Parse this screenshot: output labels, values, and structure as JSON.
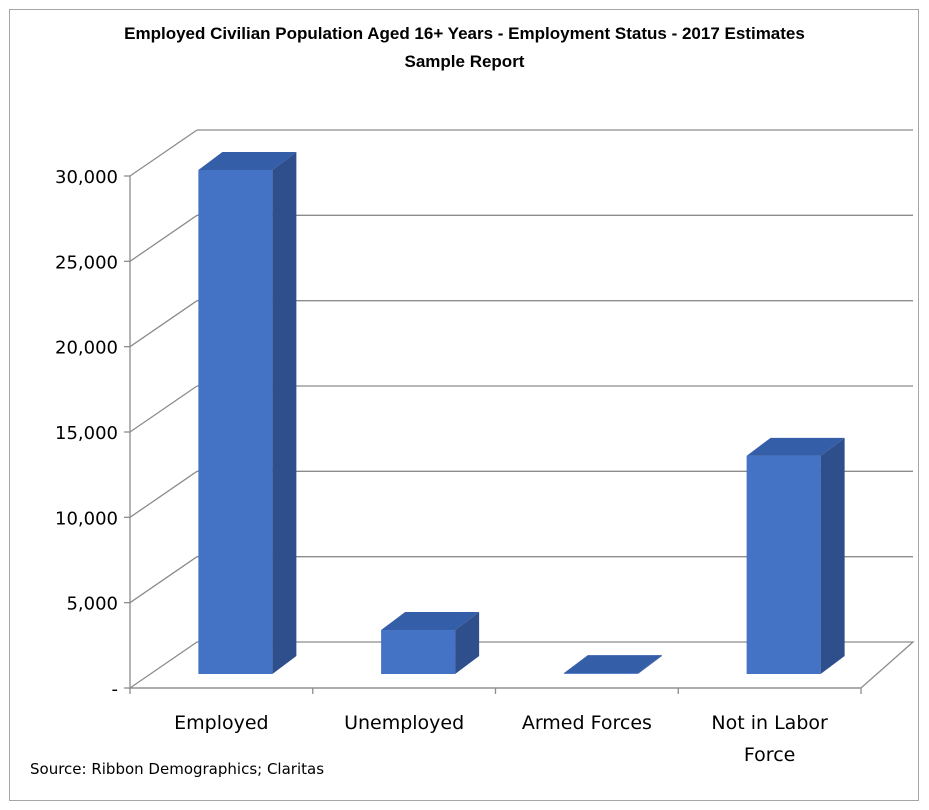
{
  "chart_data": {
    "type": "bar",
    "title": "Employed Civilian Population Aged 16+ Years - Employment Status - 2017 Estimates",
    "subtitle": "Sample Report",
    "categories": [
      "Employed",
      "Unemployed",
      "Armed Forces",
      "Not in Labor Force"
    ],
    "category_lines": [
      [
        "Employed"
      ],
      [
        "Unemployed"
      ],
      [
        "Armed Forces"
      ],
      [
        "Not in Labor",
        "Force"
      ]
    ],
    "values": [
      29800,
      2600,
      50,
      12900
    ],
    "ylim": [
      0,
      30000
    ],
    "yticks": [
      0,
      5000,
      10000,
      15000,
      20000,
      25000,
      30000
    ],
    "ytick_labels": [
      "-",
      "5,000",
      "10,000",
      "15,000",
      "20,000",
      "25,000",
      "30,000"
    ],
    "grid": true,
    "style": "3d-column",
    "colors": {
      "bar_front": "#4472c4",
      "bar_side": "#2f4f8c",
      "bar_top": "#345ea8",
      "grid": "#8c8c8c"
    }
  },
  "source": "Source: Ribbon Demographics; Claritas"
}
